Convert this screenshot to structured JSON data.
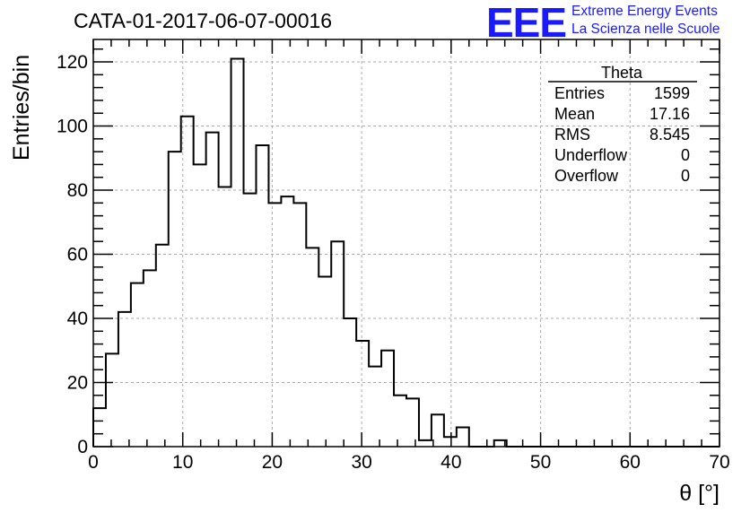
{
  "header": {
    "title": "CATA-01-2017-06-07-00016",
    "logo": "EEE",
    "logo_line1": "Extreme Energy Events",
    "logo_line2": "La Scienza nelle Scuole"
  },
  "stats_box": {
    "name": "Theta",
    "rows": [
      {
        "label": "Entries",
        "value": "1599"
      },
      {
        "label": "Mean",
        "value": "17.16"
      },
      {
        "label": "RMS",
        "value": "8.545"
      },
      {
        "label": "Underflow",
        "value": "0"
      },
      {
        "label": "Overflow",
        "value": "0"
      }
    ]
  },
  "chart_data": {
    "type": "histogram",
    "xlabel": "θ [°]",
    "ylabel": "Entries/bin",
    "xlim": [
      0,
      70
    ],
    "ylim": [
      0,
      127
    ],
    "grid": true,
    "bin_width": 1.4,
    "x_ticks": [
      0,
      10,
      20,
      30,
      40,
      50,
      60,
      70
    ],
    "y_ticks": [
      0,
      20,
      40,
      60,
      80,
      100,
      120
    ],
    "values": [
      12,
      29,
      42,
      51,
      55,
      63,
      92,
      103,
      88,
      98,
      81,
      121,
      79,
      94,
      76,
      78,
      76,
      62,
      53,
      64,
      40,
      33,
      25,
      30,
      16,
      15,
      2,
      10,
      3,
      6,
      0,
      0,
      2,
      0,
      0,
      0,
      0,
      0,
      0,
      0,
      0,
      0,
      0,
      0,
      0,
      0,
      0,
      0,
      0,
      0
    ],
    "line_color": "#000000"
  }
}
